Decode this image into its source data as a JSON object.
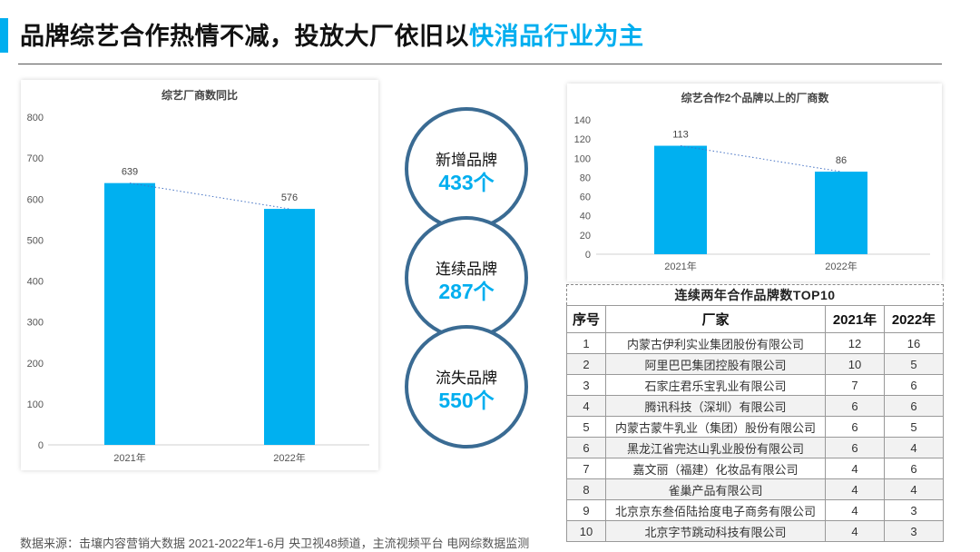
{
  "header": {
    "title_main": "品牌综艺合作热情不减，投放大厂依旧以",
    "title_accent": "快消品行业为主",
    "accent_color": "#00aeef"
  },
  "chart_data": [
    {
      "type": "bar",
      "title": "综艺厂商数同比",
      "categories": [
        "2021年",
        "2022年"
      ],
      "values": [
        639,
        576
      ],
      "data_labels": [
        "639",
        "576"
      ],
      "ylim": [
        0,
        800
      ],
      "yticks": [
        "0",
        "100",
        "200",
        "300",
        "400",
        "500",
        "600",
        "700",
        "800"
      ],
      "trendline": "dotted",
      "grid": false,
      "bar_color": "#00b0f0"
    },
    {
      "type": "bar",
      "title": "综艺合作2个品牌以上的厂商数",
      "categories": [
        "2021年",
        "2022年"
      ],
      "values": [
        113,
        86
      ],
      "data_labels": [
        "113",
        "86"
      ],
      "ylim": [
        0,
        140
      ],
      "yticks": [
        "0",
        "20",
        "40",
        "60",
        "80",
        "100",
        "120",
        "140"
      ],
      "trendline": "dotted",
      "grid": false,
      "bar_color": "#00b0f0"
    },
    {
      "type": "table",
      "title": "连续两年合作品牌数TOP10",
      "columns": [
        "序号",
        "厂家",
        "2021年",
        "2022年"
      ],
      "rows": [
        [
          "1",
          "内蒙古伊利实业集团股份有限公司",
          "12",
          "16"
        ],
        [
          "2",
          "阿里巴巴集团控股有限公司",
          "10",
          "5"
        ],
        [
          "3",
          "石家庄君乐宝乳业有限公司",
          "7",
          "6"
        ],
        [
          "4",
          "腾讯科技（深圳）有限公司",
          "6",
          "6"
        ],
        [
          "5",
          "内蒙古蒙牛乳业（集团）股份有限公司",
          "6",
          "5"
        ],
        [
          "6",
          "黑龙江省完达山乳业股份有限公司",
          "6",
          "4"
        ],
        [
          "7",
          "嘉文丽（福建）化妆品有限公司",
          "4",
          "6"
        ],
        [
          "8",
          "雀巢产品有限公司",
          "4",
          "4"
        ],
        [
          "9",
          "北京京东叁佰陆拾度电子商务有限公司",
          "4",
          "3"
        ],
        [
          "10",
          "北京字节跳动科技有限公司",
          "4",
          "3"
        ]
      ]
    }
  ],
  "circles": [
    {
      "label": "新增品牌",
      "value": "433个"
    },
    {
      "label": "连续品牌",
      "value": "287个"
    },
    {
      "label": "流失品牌",
      "value": "550个"
    }
  ],
  "footer": {
    "source": "数据来源：击壤内容营销大数据 2021-2022年1-6月  央卫视48频道，主流视频平台 电网综数据监测"
  }
}
